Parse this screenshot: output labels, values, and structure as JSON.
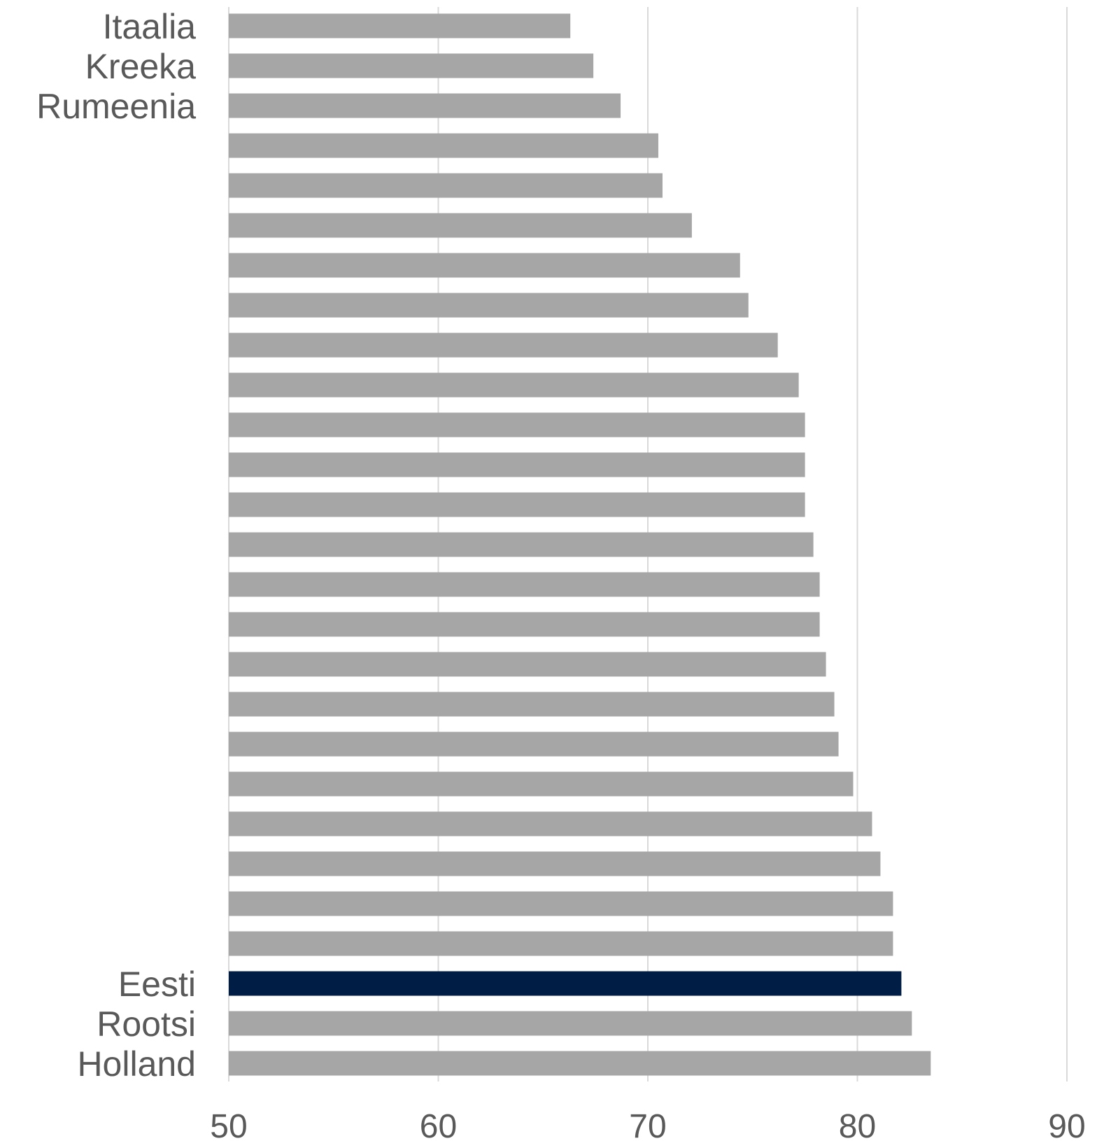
{
  "chart_data": {
    "type": "bar",
    "orientation": "horizontal",
    "categories": [
      "Itaalia",
      "Kreeka",
      "Rumeenia",
      "",
      "",
      "",
      "",
      "",
      "",
      "",
      "",
      "",
      "",
      "",
      "",
      "",
      "",
      "",
      "",
      "",
      "",
      "",
      "",
      "",
      "Eesti",
      "Rootsi",
      "Holland"
    ],
    "values": [
      66.3,
      67.4,
      68.7,
      70.5,
      70.7,
      72.1,
      74.4,
      74.8,
      76.2,
      77.2,
      77.5,
      77.5,
      77.5,
      77.9,
      78.2,
      78.2,
      78.5,
      78.9,
      79.1,
      79.8,
      80.7,
      81.1,
      81.7,
      81.7,
      82.1,
      82.6,
      83.5
    ],
    "highlight_index": 24,
    "colors": {
      "bar": "#a6a6a6",
      "highlight": "#001d45",
      "grid": "#d9d9d9",
      "text": "#595959"
    },
    "xlim": [
      50,
      90
    ],
    "xticks": [
      50,
      60,
      70,
      80,
      90
    ],
    "xlabel": "",
    "ylabel": "",
    "title": "",
    "grid": "vertical"
  }
}
